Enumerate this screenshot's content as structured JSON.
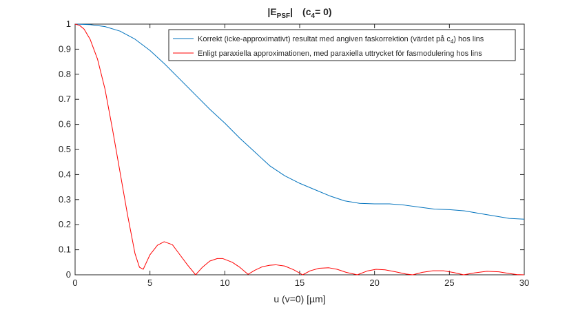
{
  "chart_data": {
    "type": "line",
    "title": {
      "main": "|E",
      "main_sub": "PSF",
      "main_end": "|",
      "params": "(c",
      "params_sub": "4",
      "params_end": "= 0)"
    },
    "xlabel": "u (v=0) [µm]",
    "ylabel": "",
    "xlim": [
      0,
      30
    ],
    "ylim": [
      0,
      1
    ],
    "xticks": [
      0,
      5,
      10,
      15,
      20,
      25,
      30
    ],
    "yticks": [
      0,
      0.1,
      0.2,
      0.3,
      0.4,
      0.5,
      0.6,
      0.7,
      0.8,
      0.9,
      1
    ],
    "xtick_labels": [
      "0",
      "5",
      "10",
      "15",
      "20",
      "25",
      "30"
    ],
    "ytick_labels": [
      "0",
      "0.1",
      "0.2",
      "0.3",
      "0.4",
      "0.5",
      "0.6",
      "0.7",
      "0.8",
      "0.9",
      "1"
    ],
    "grid": false,
    "legend_position": "top-right",
    "legend_entries": [
      {
        "text": "Korrekt (icke-approximativt) resultat med angiven faskorrektion (värdet på c",
        "sub": "4",
        "text_end": ") hos lins"
      },
      {
        "text": "Enligt paraxiella approximationen, med paraxiella uttrycket för fasmodulering hos lins",
        "sub": "",
        "text_end": ""
      }
    ],
    "series": [
      {
        "color": "#0072bd",
        "x": [
          0,
          1,
          2,
          3,
          4,
          5,
          6,
          7,
          8,
          9,
          10,
          11,
          12,
          13,
          14,
          15,
          16,
          17,
          18,
          19,
          20,
          21,
          22,
          23,
          24,
          25,
          26,
          27,
          28,
          29,
          30
        ],
        "y": [
          1.0,
          0.998,
          0.99,
          0.972,
          0.94,
          0.895,
          0.84,
          0.78,
          0.72,
          0.66,
          0.605,
          0.545,
          0.49,
          0.435,
          0.395,
          0.365,
          0.34,
          0.315,
          0.295,
          0.285,
          0.283,
          0.283,
          0.278,
          0.27,
          0.262,
          0.26,
          0.255,
          0.245,
          0.235,
          0.225,
          0.222
        ]
      },
      {
        "color": "#ff0000",
        "x": [
          0,
          0.3,
          0.6,
          1.0,
          1.5,
          2.0,
          2.5,
          3.0,
          3.5,
          4.0,
          4.3,
          4.55,
          5.0,
          5.5,
          5.95,
          6.5,
          7.0,
          7.5,
          8.05,
          8.5,
          9.0,
          9.5,
          9.85,
          10.5,
          11.0,
          11.55,
          12.0,
          12.5,
          13.0,
          13.4,
          14.0,
          14.6,
          15.2,
          15.7,
          16.3,
          16.95,
          17.5,
          18.1,
          18.85,
          19.5,
          20.1,
          20.7,
          21.4,
          22.1,
          22.55,
          23.2,
          23.9,
          24.6,
          25.3,
          25.95,
          26.7,
          27.5,
          28.3,
          29.0,
          29.5,
          30.0
        ],
        "y": [
          1.0,
          0.995,
          0.98,
          0.94,
          0.86,
          0.74,
          0.58,
          0.41,
          0.24,
          0.085,
          0.03,
          0.022,
          0.08,
          0.118,
          0.132,
          0.12,
          0.08,
          0.04,
          0.0,
          0.03,
          0.055,
          0.065,
          0.065,
          0.05,
          0.03,
          0.002,
          0.018,
          0.032,
          0.038,
          0.04,
          0.035,
          0.02,
          0.0,
          0.016,
          0.026,
          0.028,
          0.022,
          0.01,
          0.0,
          0.015,
          0.022,
          0.02,
          0.012,
          0.003,
          0.0,
          0.01,
          0.016,
          0.016,
          0.009,
          0.0,
          0.008,
          0.014,
          0.012,
          0.005,
          0.001,
          0.0
        ]
      }
    ]
  }
}
